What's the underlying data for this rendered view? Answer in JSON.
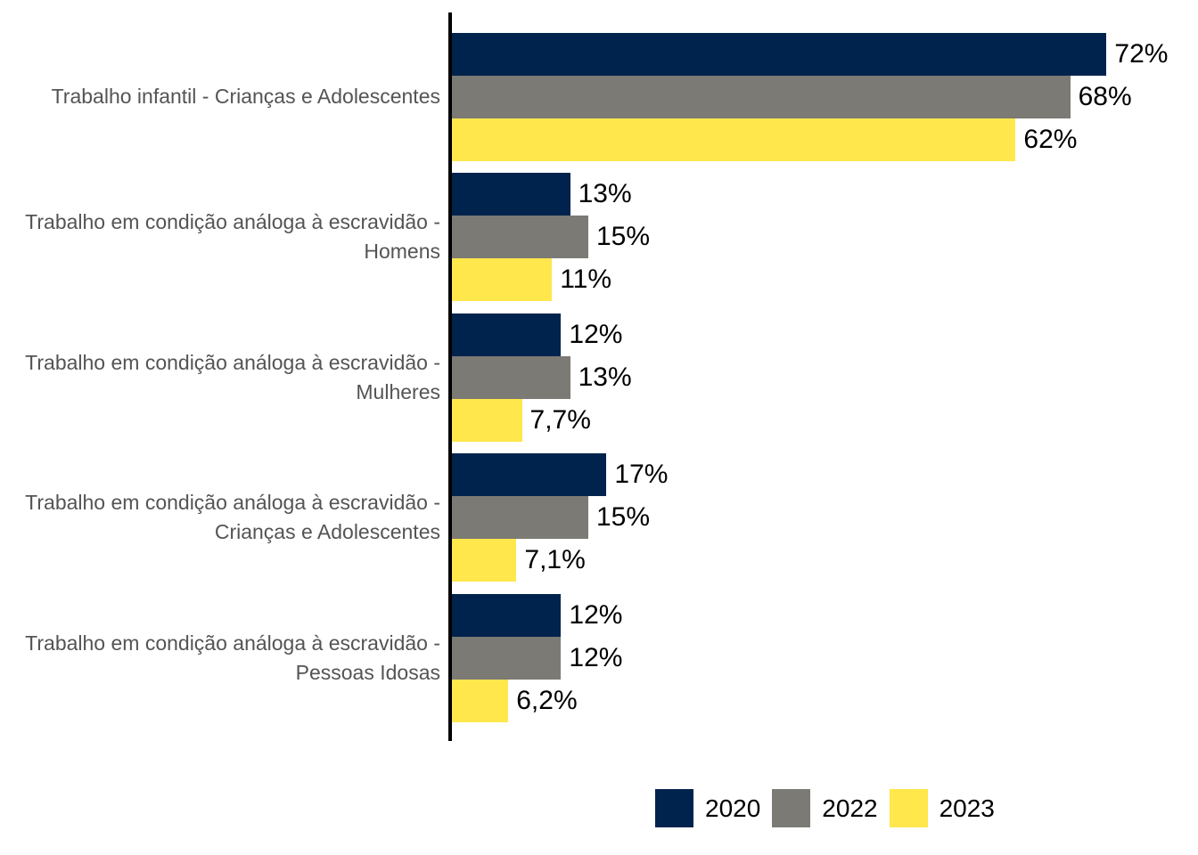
{
  "chart_data": {
    "type": "bar",
    "orientation": "horizontal",
    "title": "",
    "xlabel": "",
    "ylabel": "",
    "categories": [
      "Trabalho infantil - Crianças e Adolescentes",
      "Trabalho em condição análoga à escravidão - Homens",
      "Trabalho em condição análoga à escravidão - Mulheres",
      "Trabalho em condição análoga à escravidão - Crianças e Adolescentes",
      "Trabalho em condição análoga à escravidão - Pessoas Idosas"
    ],
    "series": [
      {
        "name": "2020",
        "color": "#00234d",
        "values": [
          72,
          13,
          12,
          17,
          12
        ],
        "labels": [
          "72%",
          "13%",
          "12%",
          "17%",
          "12%"
        ]
      },
      {
        "name": "2022",
        "color": "#7b7a74",
        "values": [
          68,
          15,
          13,
          15,
          12
        ],
        "labels": [
          "68%",
          "15%",
          "13%",
          "15%",
          "12%"
        ]
      },
      {
        "name": "2023",
        "color": "#ffe74c",
        "values": [
          62,
          11,
          7.7,
          7.1,
          6.2
        ],
        "labels": [
          "62%",
          "11%",
          "7,7%",
          "7,1%",
          "6,2%"
        ]
      }
    ],
    "xlim": [
      0,
      80
    ],
    "grid": false,
    "legend_position": "bottom",
    "legend_items": [
      "2020",
      "2022",
      "2023"
    ],
    "value_label_format": "percent, pt-BR decimal comma"
  },
  "colors": {
    "axis": "#000000",
    "category_label": "#545454",
    "value_label": "#000000",
    "background": "#ffffff"
  }
}
